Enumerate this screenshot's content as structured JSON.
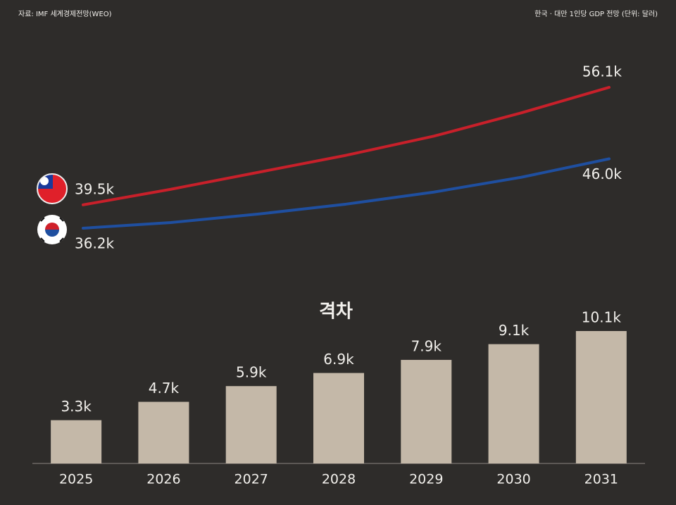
{
  "header": {
    "source": "자료: IMF 세계경제전망(WEO)",
    "title": "한국 · 대만 1인당 GDP 전망 (단위: 달러)"
  },
  "chart_data": [
    {
      "type": "line",
      "x": [
        2025,
        2026,
        2027,
        2028,
        2029,
        2030,
        2031
      ],
      "series": [
        {
          "color": "#c8202a",
          "values": [
            39500,
            41700,
            44100,
            46500,
            49200,
            52500,
            56100
          ],
          "value_labels": [
            "39.5k",
            null,
            null,
            null,
            null,
            null,
            "56.1k"
          ]
        },
        {
          "color": "#1f4fa0",
          "values": [
            36200,
            37000,
            38200,
            39600,
            41300,
            43400,
            46000
          ],
          "value_labels": [
            "36.2k",
            null,
            null,
            null,
            null,
            null,
            "46.0k"
          ]
        }
      ]
    },
    {
      "type": "bar",
      "title": "격차",
      "categories": [
        "2025",
        "2026",
        "2027",
        "2028",
        "2029",
        "2030",
        "2031"
      ],
      "values": [
        3300,
        4700,
        5900,
        6900,
        7900,
        9100,
        10100
      ],
      "value_labels": [
        "3.3k",
        "4.7k",
        "5.9k",
        "6.9k",
        "7.9k",
        "9.1k",
        "10.1k"
      ],
      "color": "#c4b8a8"
    }
  ]
}
